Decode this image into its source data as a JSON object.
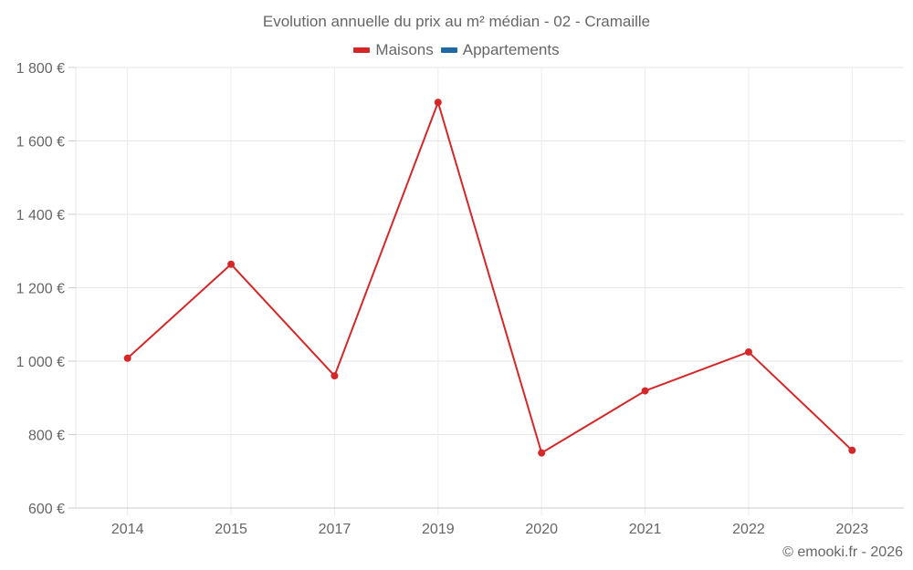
{
  "chart_data": {
    "type": "line",
    "title": "Evolution annuelle du prix au m² médian - 02 - Cramaille",
    "xlabel": "",
    "ylabel": "",
    "categories": [
      "2014",
      "2015",
      "2017",
      "2019",
      "2020",
      "2021",
      "2022",
      "2023"
    ],
    "series": [
      {
        "name": "Maisons",
        "color": "#d62728",
        "values": [
          1008,
          1264,
          960,
          1705,
          750,
          919,
          1025,
          757
        ]
      },
      {
        "name": "Appartements",
        "color": "#1f6aa5",
        "values": []
      }
    ],
    "ylim": [
      600,
      1800
    ],
    "yticks": [
      600,
      800,
      1000,
      1200,
      1400,
      1600,
      1800
    ],
    "ytick_labels": [
      "600 €",
      "800 €",
      "1 000 €",
      "1 200 €",
      "1 400 €",
      "1 600 €",
      "1 800 €"
    ],
    "grid": true,
    "legend_position": "top"
  },
  "credit": "© emooki.fr - 2026"
}
